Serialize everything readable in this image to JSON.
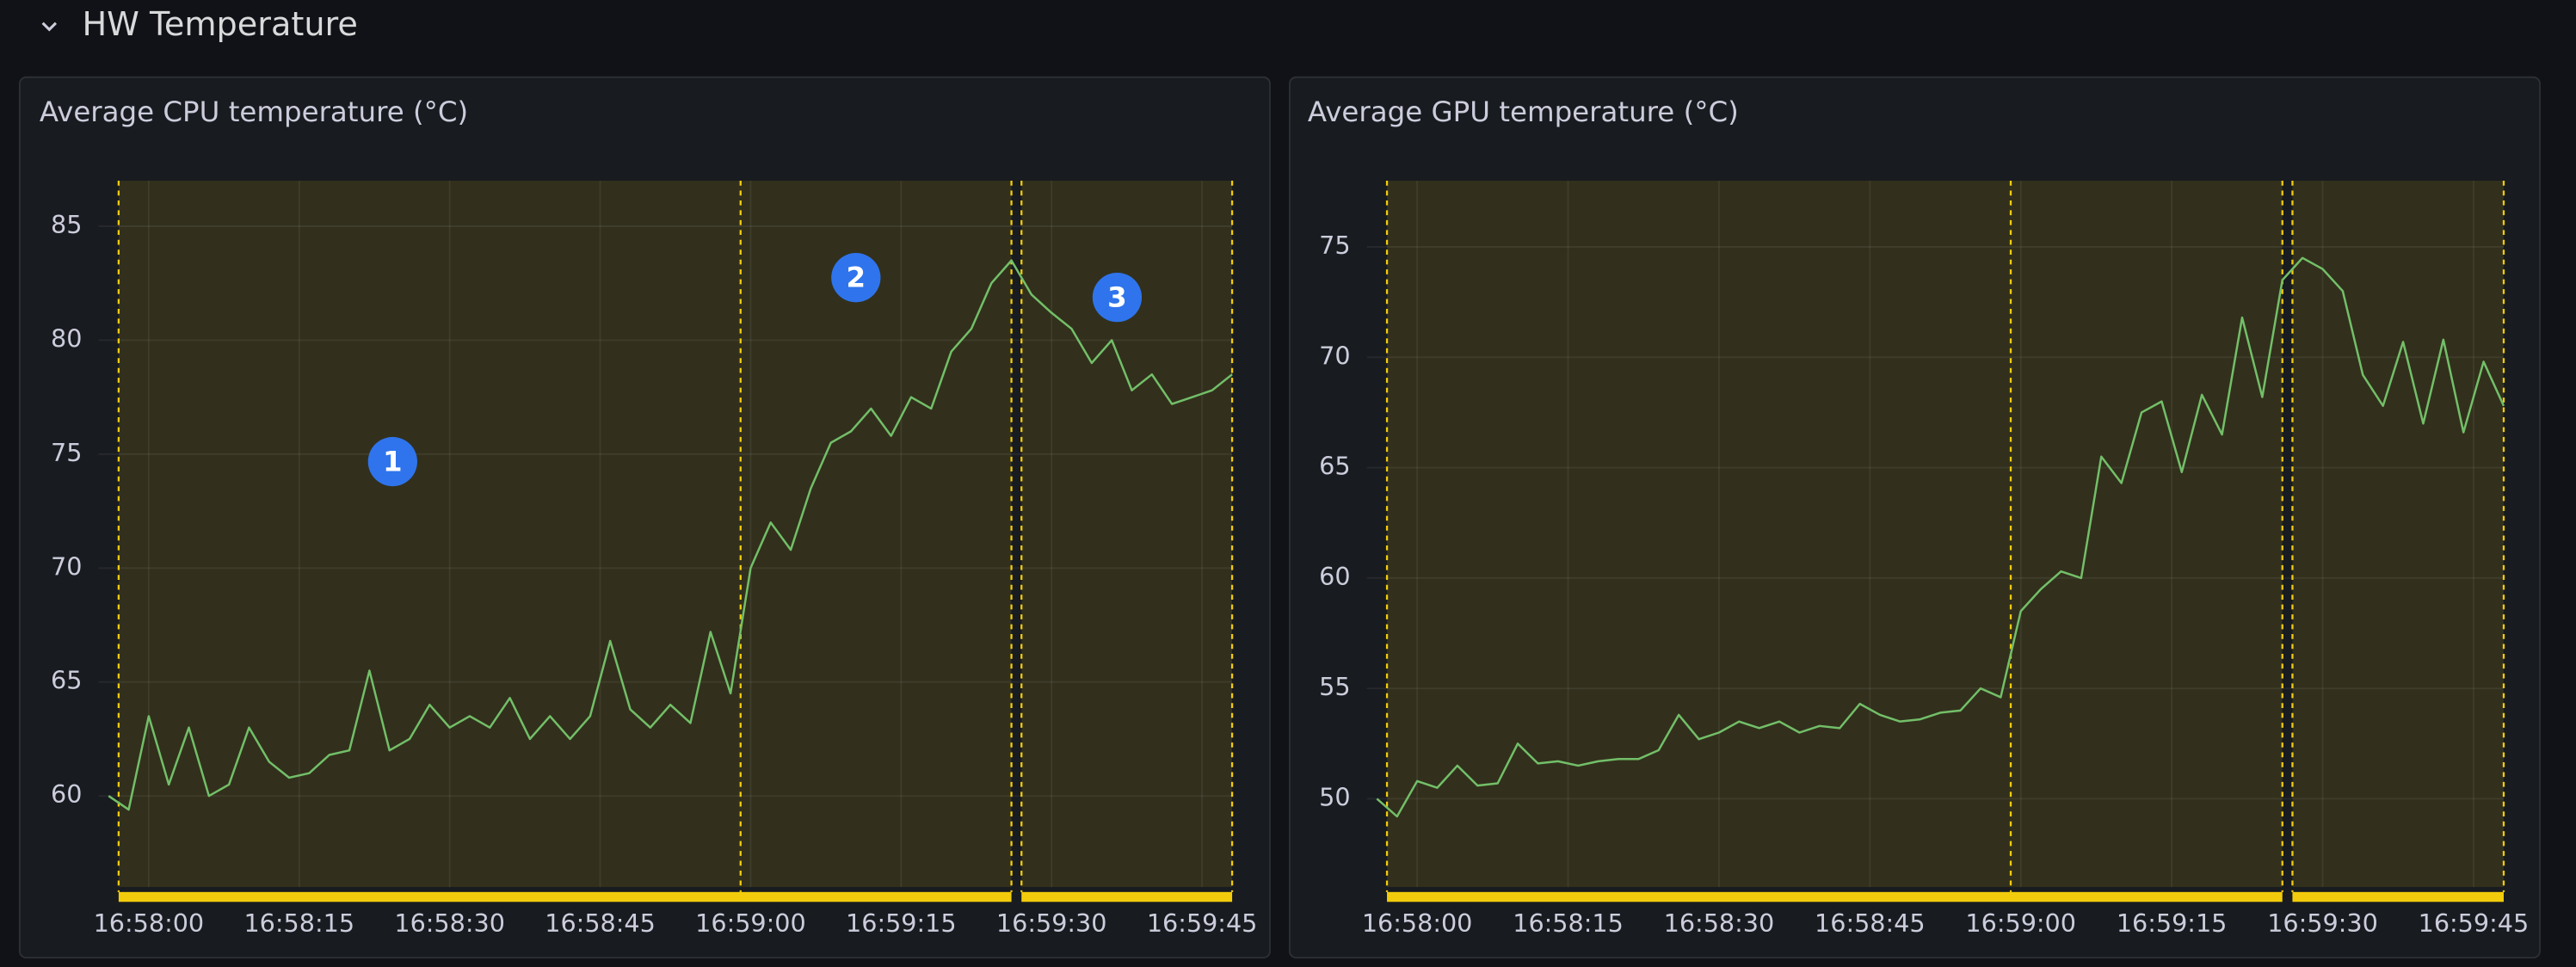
{
  "section_title": "HW Temperature",
  "markers": [
    "1",
    "2",
    "3"
  ],
  "chart_data": [
    {
      "type": "line",
      "title": "Average CPU temperature (°C)",
      "x": [
        "16:57:56",
        "16:57:58",
        "16:58:00",
        "16:58:02",
        "16:58:04",
        "16:58:06",
        "16:58:08",
        "16:58:10",
        "16:58:12",
        "16:58:14",
        "16:58:16",
        "16:58:18",
        "16:58:20",
        "16:58:22",
        "16:58:24",
        "16:58:26",
        "16:58:28",
        "16:58:30",
        "16:58:32",
        "16:58:34",
        "16:58:36",
        "16:58:38",
        "16:58:40",
        "16:58:42",
        "16:58:44",
        "16:58:46",
        "16:58:48",
        "16:58:50",
        "16:58:52",
        "16:58:54",
        "16:58:56",
        "16:58:58",
        "16:59:00",
        "16:59:02",
        "16:59:04",
        "16:59:06",
        "16:59:08",
        "16:59:10",
        "16:59:12",
        "16:59:14",
        "16:59:16",
        "16:59:18",
        "16:59:20",
        "16:59:22",
        "16:59:24",
        "16:59:26",
        "16:59:28",
        "16:59:30",
        "16:59:32",
        "16:59:34",
        "16:59:36",
        "16:59:38",
        "16:59:40",
        "16:59:42",
        "16:59:44",
        "16:59:46",
        "16:59:48"
      ],
      "series": [
        {
          "color": "#73bf69",
          "values": [
            60.0,
            59.4,
            63.5,
            60.5,
            63.0,
            60.0,
            60.5,
            63.0,
            61.5,
            60.8,
            61.0,
            61.8,
            62.0,
            65.5,
            62.0,
            62.5,
            64.0,
            63.0,
            63.5,
            63.0,
            64.3,
            62.5,
            63.5,
            62.5,
            63.5,
            66.8,
            63.8,
            63.0,
            64.0,
            63.2,
            67.2,
            64.5,
            70.0,
            72.0,
            70.8,
            73.5,
            75.5,
            76.0,
            77.0,
            75.8,
            77.5,
            77.0,
            79.5,
            80.5,
            82.5,
            83.5,
            82.0,
            81.2,
            80.5,
            79.0,
            80.0,
            77.8,
            78.5,
            77.2,
            77.5,
            77.8,
            78.5
          ]
        }
      ],
      "xlim": [
        "16:57:55",
        "16:59:48"
      ],
      "xticks": [
        "16:58:00",
        "16:58:15",
        "16:58:30",
        "16:58:45",
        "16:59:00",
        "16:59:15",
        "16:59:30",
        "16:59:45"
      ],
      "ylim": [
        56,
        87
      ],
      "yticks": [
        60,
        65,
        70,
        75,
        80,
        85
      ],
      "grid": true,
      "annotation_color": "#f2cc0c",
      "annotations": [
        {
          "start": "16:57:57",
          "end": "16:59:26"
        },
        {
          "time": "16:58:59"
        },
        {
          "start": "16:59:27",
          "end": "16:59:48"
        }
      ]
    },
    {
      "type": "line",
      "title": "Average GPU temperature (°C)",
      "x": [
        "16:57:56",
        "16:57:58",
        "16:58:00",
        "16:58:02",
        "16:58:04",
        "16:58:06",
        "16:58:08",
        "16:58:10",
        "16:58:12",
        "16:58:14",
        "16:58:16",
        "16:58:18",
        "16:58:20",
        "16:58:22",
        "16:58:24",
        "16:58:26",
        "16:58:28",
        "16:58:30",
        "16:58:32",
        "16:58:34",
        "16:58:36",
        "16:58:38",
        "16:58:40",
        "16:58:42",
        "16:58:44",
        "16:58:46",
        "16:58:48",
        "16:58:50",
        "16:58:52",
        "16:58:54",
        "16:58:56",
        "16:58:58",
        "16:59:00",
        "16:59:02",
        "16:59:04",
        "16:59:06",
        "16:59:08",
        "16:59:10",
        "16:59:12",
        "16:59:14",
        "16:59:16",
        "16:59:18",
        "16:59:20",
        "16:59:22",
        "16:59:24",
        "16:59:26",
        "16:59:28",
        "16:59:30",
        "16:59:32",
        "16:59:34",
        "16:59:36",
        "16:59:38",
        "16:59:40",
        "16:59:42",
        "16:59:44",
        "16:59:46",
        "16:59:48"
      ],
      "series": [
        {
          "color": "#73bf69",
          "values": [
            50.0,
            49.2,
            50.8,
            50.5,
            51.5,
            50.6,
            50.7,
            52.5,
            51.6,
            51.7,
            51.5,
            51.7,
            51.8,
            51.8,
            52.2,
            53.8,
            52.7,
            53.0,
            53.5,
            53.2,
            53.5,
            53.0,
            53.3,
            53.2,
            54.3,
            53.8,
            53.5,
            53.6,
            53.9,
            54.0,
            55.0,
            54.6,
            58.5,
            59.5,
            60.3,
            60.0,
            65.5,
            64.3,
            67.5,
            68.0,
            64.8,
            68.3,
            66.5,
            71.8,
            68.2,
            73.5,
            74.5,
            74.0,
            73.0,
            69.2,
            67.8,
            70.7,
            67.0,
            70.8,
            66.6,
            69.8,
            67.8
          ]
        }
      ],
      "xlim": [
        "16:57:55",
        "16:59:48"
      ],
      "xticks": [
        "16:58:00",
        "16:58:15",
        "16:58:30",
        "16:58:45",
        "16:59:00",
        "16:59:15",
        "16:59:30",
        "16:59:45"
      ],
      "ylim": [
        46,
        78
      ],
      "yticks": [
        50,
        55,
        60,
        65,
        70,
        75
      ],
      "grid": true,
      "annotation_color": "#f2cc0c",
      "annotations": [
        {
          "start": "16:57:57",
          "end": "16:59:26"
        },
        {
          "time": "16:58:59"
        },
        {
          "start": "16:59:27",
          "end": "16:59:48"
        }
      ]
    }
  ]
}
